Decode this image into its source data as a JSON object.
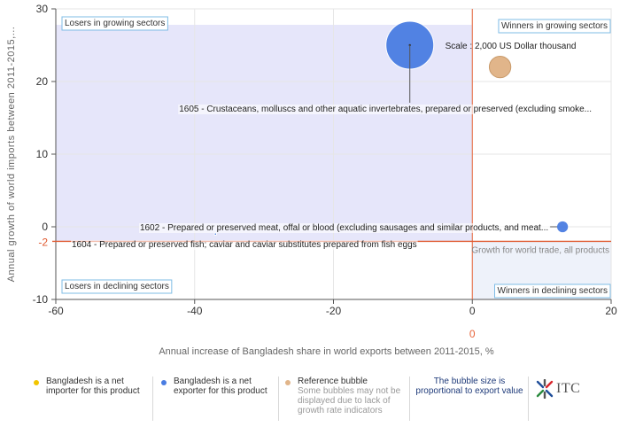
{
  "chart_data": {
    "type": "scatter",
    "xlabel": "Annual increase of Bangladesh share in world exports between 2011-2015, %",
    "ylabel": "Annual growth of world imports between 2011-2015,...",
    "xlim": [
      -60,
      20
    ],
    "ylim": [
      -10,
      30
    ],
    "x_ticks": [
      "-60",
      "-40",
      "-20",
      "0",
      "20"
    ],
    "y_ticks": [
      "-10",
      "0",
      "10",
      "20",
      "30"
    ],
    "reference_x": 0,
    "reference_x_label": "0",
    "reference_y": -2,
    "reference_y_label": "-2",
    "reference_y_note": "Growth for world trade, all products",
    "quadrants": {
      "top_left": "Losers in growing sectors",
      "top_right": "Winners in growing sectors",
      "bottom_left": "Losers in declining sectors",
      "bottom_right": "Winners in declining sectors"
    },
    "colors": {
      "exporter": "#4a7de2",
      "importer": "#f2c500",
      "reference": "#e1b58a",
      "shade_top_left": "#e6e6fa",
      "shade_bottom_right": "#eef2fa",
      "ref_line_x": "#e8643a",
      "ref_line_y": "#e05a30"
    },
    "bubbles": [
      {
        "label": "1605 - Crustaceans, molluscs and other aquatic invertebrates, prepared or preserved (excluding smoke...",
        "x": -9,
        "y": 25,
        "value": 2000,
        "type": "exporter"
      },
      {
        "label": "1602 - Prepared or preserved meat, offal or blood (excluding sausages and similar products, and meat...",
        "x": 13,
        "y": 0,
        "value": 150,
        "type": "exporter"
      },
      {
        "label": "1604 - Prepared or preserved fish; caviar and caviar substitutes prepared from fish eggs",
        "x": -37,
        "y": -1,
        "value": 0,
        "type": "exporter"
      }
    ],
    "reference_bubble": {
      "label": "Scale : 2,000 US Dollar thousand",
      "x": 4,
      "y": 22,
      "value": 2000
    }
  },
  "legend": {
    "importer": "Bangladesh is a net importer for this product",
    "exporter": "Bangladesh is a net exporter for this product",
    "reference": "Reference bubble",
    "reference_note": "Some bubbles may not be displayed due to lack of growth rate indicators",
    "size_note": "The bubble size is proportional to export value",
    "logo": "ITC"
  }
}
